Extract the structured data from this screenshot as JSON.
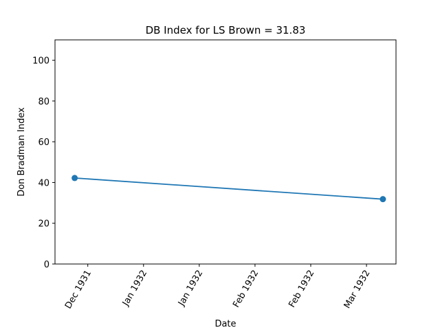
{
  "chart_data": {
    "type": "line",
    "title": "DB Index for LS Brown = 31.83",
    "xlabel": "Date",
    "ylabel": "Don Bradman Index",
    "x": [
      "1931-11-27",
      "1932-02-29"
    ],
    "series": [
      {
        "name": "",
        "values": [
          42.2,
          31.83
        ],
        "color": "#1f77b4"
      }
    ],
    "xlim": [
      "1931-11-21",
      "1932-03-04"
    ],
    "ylim": [
      0,
      110
    ],
    "x_ticks": [
      {
        "value": "1931-12-01",
        "label": "Dec 1931"
      },
      {
        "value": "1931-12-18",
        "label": "Jan 1932"
      },
      {
        "value": "1932-01-04",
        "label": "Jan 1932"
      },
      {
        "value": "1932-01-21",
        "label": "Feb 1932"
      },
      {
        "value": "1932-02-07",
        "label": "Feb 1932"
      },
      {
        "value": "1932-02-24",
        "label": "Mar 1932"
      }
    ],
    "y_ticks": [
      0,
      20,
      40,
      60,
      80,
      100
    ],
    "grid": false,
    "legend": "none"
  }
}
